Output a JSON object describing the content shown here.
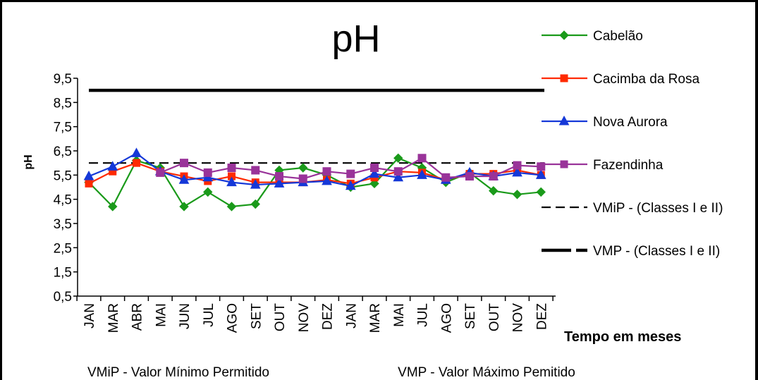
{
  "chart_data": {
    "type": "line",
    "title": "pH",
    "xlabel": "Tempo em meses",
    "ylabel": "pH",
    "ylim": [
      0.5,
      9.5
    ],
    "yticks": [
      "0,5",
      "1,5",
      "2,5",
      "3,5",
      "4,5",
      "5,5",
      "6,5",
      "7,5",
      "8,5",
      "9,5"
    ],
    "ytick_values": [
      0.5,
      1.5,
      2.5,
      3.5,
      4.5,
      5.5,
      6.5,
      7.5,
      8.5,
      9.5
    ],
    "categories": [
      "JAN",
      "MAR",
      "ABR",
      "MAI",
      "JUN",
      "JUL",
      "AGO",
      "SET",
      "OUT",
      "NOV",
      "DEZ",
      "JAN",
      "MAR",
      "MAI",
      "JUL",
      "AGO",
      "SET",
      "OUT",
      "NOV",
      "DEZ"
    ],
    "legend_position": "right",
    "grid": false,
    "series": [
      {
        "name": "Cabelão",
        "color": "#1a9a1a",
        "marker": "diamond",
        "values": [
          5.2,
          4.2,
          6.1,
          5.8,
          4.2,
          4.8,
          4.2,
          4.3,
          5.7,
          5.8,
          5.5,
          5.0,
          5.15,
          6.2,
          5.8,
          5.2,
          5.6,
          4.85,
          4.7,
          4.8
        ]
      },
      {
        "name": "Cacimba da Rosa",
        "color": "#ff2a00",
        "marker": "square",
        "values": [
          5.15,
          5.65,
          6.0,
          5.65,
          5.45,
          5.25,
          5.45,
          5.2,
          5.2,
          5.2,
          5.3,
          5.15,
          5.4,
          5.65,
          5.6,
          5.3,
          5.55,
          5.55,
          5.7,
          5.5
        ]
      },
      {
        "name": "Nova Aurora",
        "color": "#1538d8",
        "marker": "triangle",
        "values": [
          5.45,
          5.85,
          6.4,
          5.65,
          5.3,
          5.4,
          5.2,
          5.1,
          5.15,
          5.2,
          5.25,
          5.05,
          5.55,
          5.4,
          5.5,
          5.3,
          5.6,
          5.45,
          5.6,
          5.5
        ]
      },
      {
        "name": "Fazendinha",
        "color": "#993399",
        "marker": "square",
        "values": [
          null,
          null,
          null,
          5.6,
          6.0,
          5.6,
          5.8,
          5.7,
          5.45,
          5.35,
          5.65,
          5.55,
          5.8,
          5.65,
          6.2,
          5.4,
          5.45,
          5.45,
          5.9,
          5.85
        ]
      }
    ],
    "reference_lines": [
      {
        "name": "VMiP - (Classes I e II)",
        "value": 6.0,
        "style": "dashed",
        "color": "#000000"
      },
      {
        "name": "VMP - (Classes I e II)",
        "value": 9.0,
        "style": "solid",
        "color": "#000000"
      }
    ]
  },
  "footnotes": {
    "vmip": "VMiP - Valor Mínimo Permitido",
    "vmp": "VMP - Valor Máximo Pemitido"
  }
}
